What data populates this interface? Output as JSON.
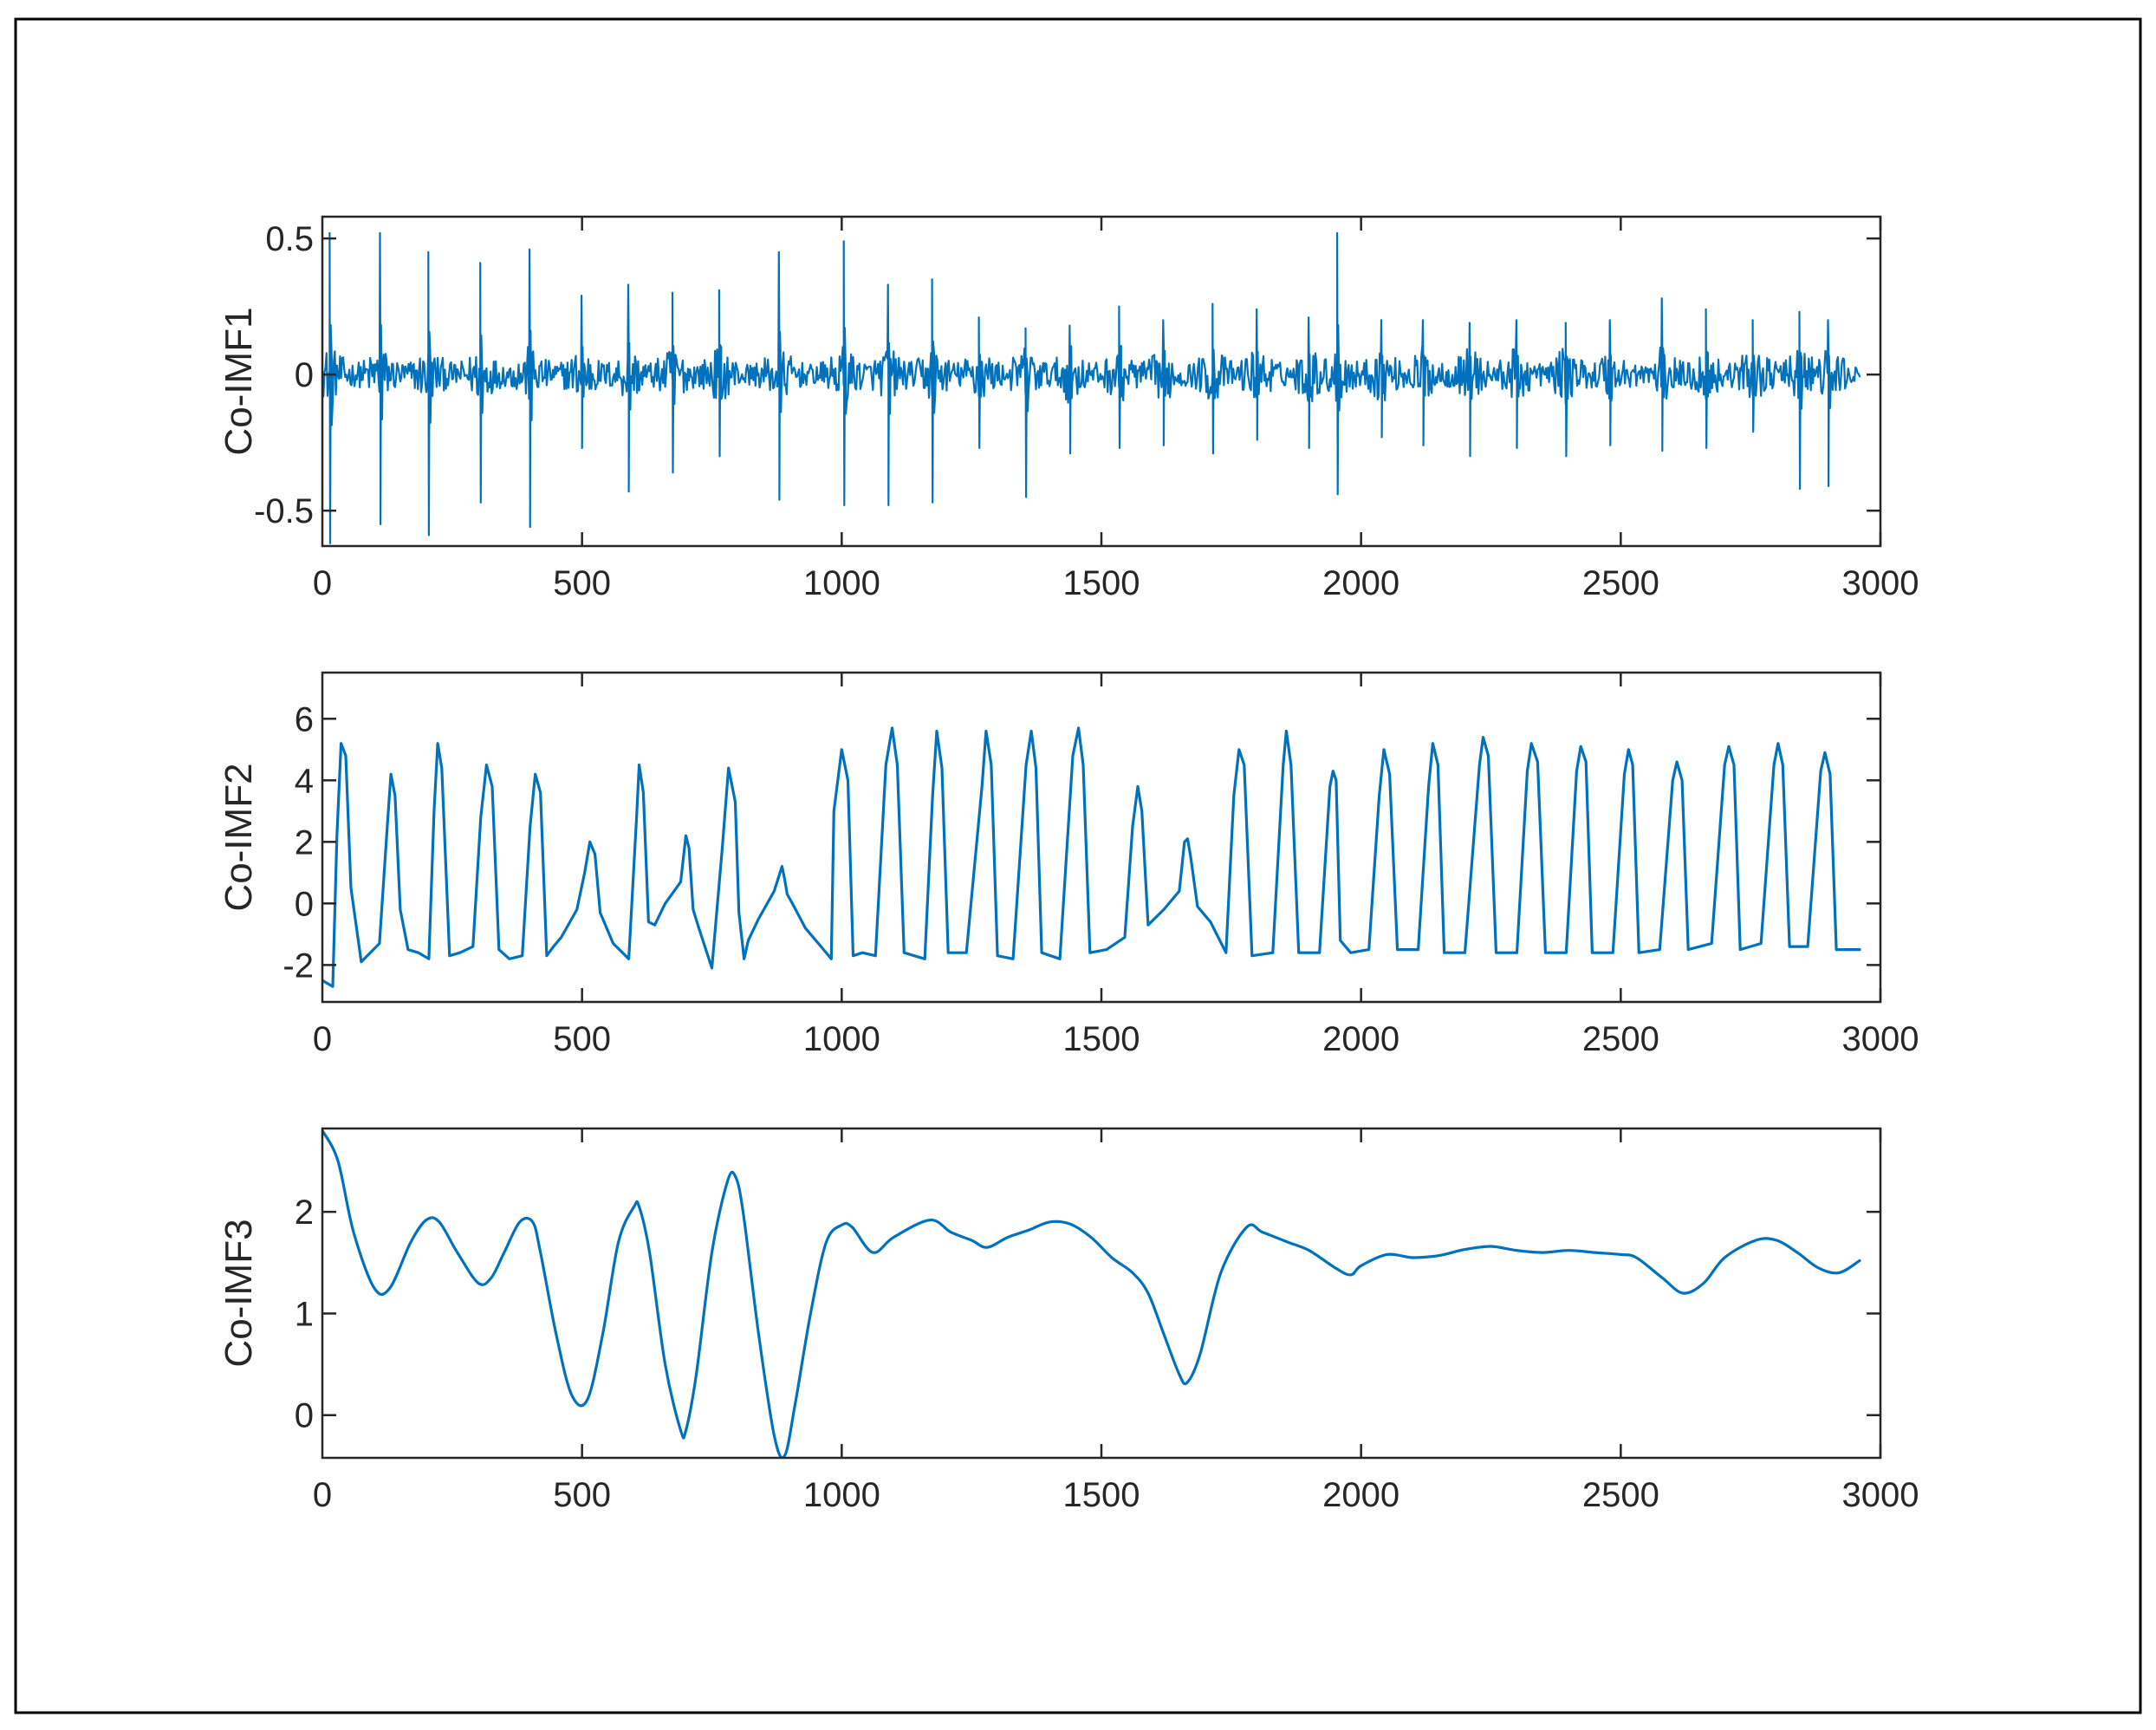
{
  "chart_data": [
    {
      "type": "line",
      "ylabel": "Co-IMF1",
      "xlabel": "",
      "title": "",
      "xlim": [
        0,
        2960
      ],
      "ylim": [
        -0.63,
        0.58
      ],
      "xticks": [
        0,
        500,
        1000,
        1500,
        2000,
        2500,
        3000
      ],
      "yticks": [
        -0.5,
        0,
        0.5
      ],
      "ytick_labels": [
        "-0.5",
        "0",
        "0.5"
      ],
      "color": "#0072BD",
      "spike_times": [
        15,
        112,
        205,
        305,
        400,
        500,
        590,
        675,
        765,
        880,
        1005,
        1090,
        1175,
        1265,
        1355,
        1440,
        1535,
        1620,
        1715,
        1800,
        1900,
        1955,
        2040,
        2120,
        2210,
        2300,
        2395,
        2480,
        2580,
        2665,
        2755,
        2845,
        2900
      ],
      "spike_up": [
        0.52,
        0.52,
        0.45,
        0.41,
        0.46,
        0.29,
        0.33,
        0.3,
        0.31,
        0.45,
        0.49,
        0.33,
        0.35,
        0.21,
        0.17,
        0.18,
        0.25,
        0.2,
        0.26,
        0.24,
        0.21,
        0.52,
        0.2,
        0.2,
        0.19,
        0.2,
        0.19,
        0.2,
        0.28,
        0.24,
        0.2,
        0.23,
        0.2
      ],
      "spike_down": [
        -0.62,
        -0.55,
        -0.59,
        -0.47,
        -0.56,
        -0.27,
        -0.43,
        -0.36,
        -0.3,
        -0.46,
        -0.48,
        -0.48,
        -0.47,
        -0.27,
        -0.45,
        -0.29,
        -0.27,
        -0.26,
        -0.29,
        -0.24,
        -0.27,
        -0.44,
        -0.23,
        -0.26,
        -0.3,
        -0.27,
        -0.3,
        -0.26,
        -0.28,
        -0.27,
        -0.21,
        -0.42,
        -0.41
      ]
    },
    {
      "type": "line",
      "ylabel": "Co-IMF2",
      "xlabel": "",
      "title": "",
      "xlim": [
        0,
        2960
      ],
      "ylim": [
        -3.2,
        7.5
      ],
      "xticks": [
        0,
        500,
        1000,
        1500,
        2000,
        2500,
        3000
      ],
      "yticks": [
        -2,
        0,
        2,
        4,
        6
      ],
      "ytick_labels": [
        "-2",
        "0",
        "2",
        "4",
        "6"
      ],
      "color": "#0072BD",
      "x": [
        0,
        10,
        20,
        28,
        36,
        45,
        55,
        75,
        110,
        125,
        132,
        140,
        150,
        165,
        185,
        205,
        215,
        222,
        230,
        245,
        265,
        290,
        305,
        316,
        327,
        340,
        360,
        385,
        400,
        410,
        420,
        432,
        445,
        460,
        490,
        505,
        515,
        525,
        535,
        560,
        590,
        605,
        610,
        618,
        628,
        640,
        660,
        690,
        700,
        706,
        714,
        725,
        750,
        770,
        782,
        795,
        802,
        812,
        820,
        840,
        870,
        885,
        890,
        895,
        905,
        930,
        965,
        980,
        985,
        1000,
        1012,
        1022,
        1040,
        1065,
        1085,
        1097,
        1107,
        1120,
        1160,
        1175,
        1183,
        1193,
        1205,
        1240,
        1270,
        1278,
        1288,
        1300,
        1330,
        1355,
        1365,
        1374,
        1385,
        1420,
        1445,
        1456,
        1465,
        1478,
        1510,
        1545,
        1560,
        1570,
        1578,
        1590,
        1620,
        1650,
        1660,
        1666,
        1672,
        1685,
        1710,
        1740,
        1755,
        1765,
        1775,
        1790,
        1830,
        1850,
        1856,
        1865,
        1880,
        1920,
        1940,
        1946,
        1952,
        1960,
        1980,
        2015,
        2035,
        2044,
        2055,
        2070,
        2110,
        2130,
        2138,
        2148,
        2160,
        2200,
        2228,
        2235,
        2245,
        2260,
        2300,
        2320,
        2328,
        2340,
        2355,
        2395,
        2415,
        2423,
        2433,
        2445,
        2485,
        2507,
        2515,
        2523,
        2535,
        2575,
        2600,
        2608,
        2618,
        2630,
        2675,
        2700,
        2708,
        2718,
        2730,
        2770,
        2795,
        2803,
        2812,
        2825,
        2860,
        2885,
        2893,
        2903,
        2915,
        2960
      ],
      "y": [
        -2.5,
        -2.6,
        -2.7,
        2.2,
        5.2,
        4.8,
        0.5,
        -1.9,
        -1.3,
        2.5,
        4.2,
        3.5,
        -0.2,
        -1.5,
        -1.6,
        -1.8,
        3.0,
        5.2,
        4.4,
        -1.7,
        -1.6,
        -1.4,
        2.8,
        4.5,
        3.8,
        -1.5,
        -1.8,
        -1.7,
        2.5,
        4.2,
        3.6,
        -1.7,
        -1.4,
        -1.1,
        -0.2,
        1.0,
        2.0,
        1.6,
        -0.3,
        -1.3,
        -1.8,
        2.8,
        4.5,
        3.6,
        -0.6,
        -0.7,
        0.0,
        0.7,
        2.2,
        1.8,
        -0.2,
        -0.8,
        -2.1,
        1.8,
        4.4,
        3.3,
        -0.3,
        -1.8,
        -1.2,
        -0.5,
        0.4,
        1.2,
        0.8,
        0.3,
        0.0,
        -0.8,
        -1.5,
        -1.8,
        3.0,
        5.0,
        4.0,
        -1.7,
        -1.6,
        -1.7,
        4.5,
        5.7,
        4.5,
        -1.6,
        -1.8,
        3.5,
        5.6,
        4.4,
        -1.6,
        -1.6,
        3.8,
        5.6,
        4.5,
        -1.7,
        -1.8,
        4.5,
        5.6,
        4.4,
        -1.6,
        -1.8,
        4.8,
        5.7,
        4.5,
        -1.6,
        -1.5,
        -1.1,
        2.5,
        3.8,
        3.0,
        -0.7,
        -0.2,
        0.4,
        2.0,
        2.1,
        1.5,
        -0.1,
        -0.6,
        -1.6,
        3.5,
        5.0,
        4.5,
        -1.7,
        -1.6,
        4.5,
        5.6,
        4.5,
        -1.6,
        -1.6,
        3.8,
        4.3,
        4.0,
        -1.2,
        -1.6,
        -1.5,
        3.5,
        5.0,
        4.2,
        -1.5,
        -1.5,
        3.8,
        5.2,
        4.5,
        -1.6,
        -1.6,
        4.5,
        5.4,
        4.8,
        -1.6,
        -1.6,
        4.3,
        5.2,
        4.6,
        -1.6,
        -1.6,
        4.3,
        5.1,
        4.6,
        -1.6,
        -1.6,
        4.2,
        5.0,
        4.5,
        -1.6,
        -1.5,
        4.0,
        4.6,
        4.0,
        -1.5,
        -1.3,
        4.5,
        5.1,
        4.5,
        -1.5,
        -1.3,
        4.5,
        5.2,
        4.5,
        -1.4,
        -1.4,
        4.3,
        4.9,
        4.2,
        -1.5,
        -1.5
      ]
    },
    {
      "type": "line",
      "ylabel": "Co-IMF3",
      "xlabel": "",
      "title": "",
      "xlim": [
        0,
        2960
      ],
      "ylim": [
        -0.42,
        2.82
      ],
      "xticks": [
        0,
        500,
        1000,
        1500,
        2000,
        2500,
        3000
      ],
      "yticks": [
        0,
        1,
        2
      ],
      "ytick_labels": [
        "0",
        "1",
        "2"
      ],
      "color": "#0072BD",
      "x": [
        0,
        30,
        60,
        100,
        130,
        170,
        200,
        225,
        260,
        300,
        325,
        350,
        380,
        405,
        420,
        450,
        480,
        510,
        540,
        570,
        600,
        610,
        630,
        660,
        690,
        700,
        720,
        750,
        780,
        795,
        810,
        840,
        870,
        890,
        910,
        940,
        970,
        1000,
        1020,
        1060,
        1100,
        1170,
        1210,
        1250,
        1280,
        1320,
        1360,
        1400,
        1440,
        1480,
        1520,
        1560,
        1590,
        1620,
        1650,
        1665,
        1690,
        1730,
        1780,
        1810,
        1860,
        1900,
        1950,
        1980,
        2000,
        2050,
        2100,
        2150,
        2200,
        2250,
        2300,
        2350,
        2400,
        2450,
        2500,
        2530,
        2580,
        2620,
        2660,
        2700,
        2760,
        2800,
        2840,
        2880,
        2920,
        2960
      ],
      "y": [
        2.8,
        2.5,
        1.8,
        1.25,
        1.25,
        1.7,
        1.92,
        1.9,
        1.6,
        1.3,
        1.35,
        1.6,
        1.9,
        1.9,
        1.6,
        0.8,
        0.2,
        0.15,
        0.8,
        1.7,
        2.05,
        2.05,
        1.6,
        0.5,
        -0.15,
        -0.15,
        0.4,
        1.6,
        2.3,
        2.35,
        2.0,
        0.8,
        -0.2,
        -0.4,
        0.1,
        1.0,
        1.7,
        1.87,
        1.85,
        1.6,
        1.75,
        1.92,
        1.8,
        1.72,
        1.65,
        1.75,
        1.82,
        1.9,
        1.88,
        1.75,
        1.55,
        1.4,
        1.2,
        0.8,
        0.4,
        0.32,
        0.6,
        1.4,
        1.85,
        1.8,
        1.7,
        1.62,
        1.45,
        1.38,
        1.47,
        1.58,
        1.55,
        1.57,
        1.63,
        1.66,
        1.62,
        1.6,
        1.62,
        1.6,
        1.58,
        1.55,
        1.35,
        1.2,
        1.3,
        1.55,
        1.72,
        1.72,
        1.6,
        1.45,
        1.4,
        1.52
      ]
    }
  ]
}
